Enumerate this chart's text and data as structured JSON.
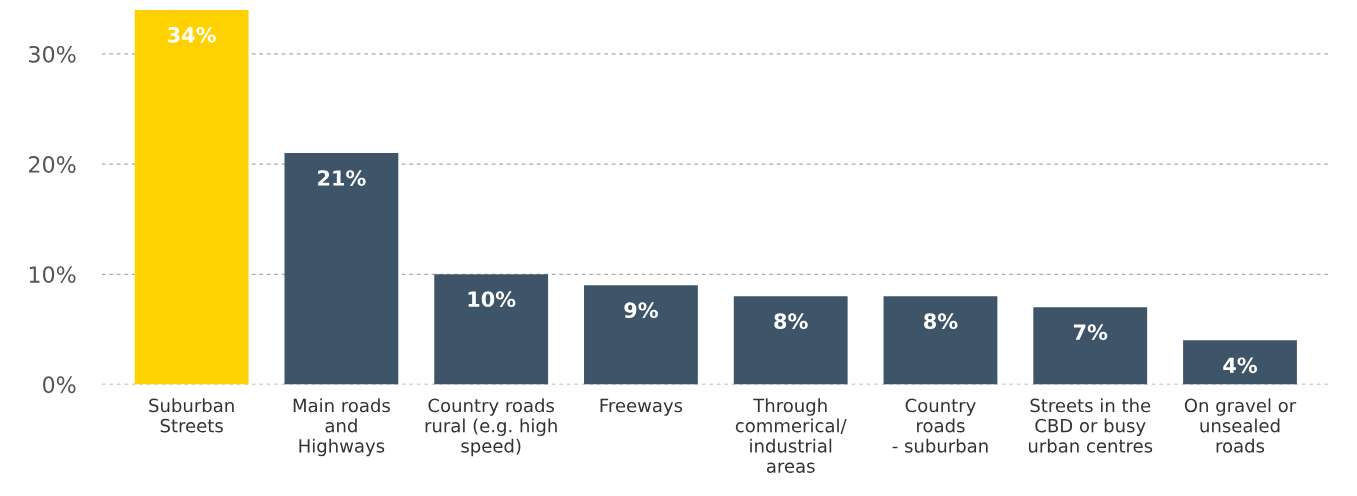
{
  "chart_data": {
    "type": "bar",
    "categories": [
      "Suburban\nStreets",
      "Main roads\nand\nHighways",
      "Country roads\nrural (e.g. high\nspeed)",
      "Freeways",
      "Through\ncommerical/\nindustrial\nareas",
      "Country\nroads\n- suburban",
      "Streets in the\nCBD or busy\nurban centres",
      "On gravel or\nunsealed\nroads"
    ],
    "values": [
      34,
      21,
      10,
      9,
      8,
      8,
      7,
      4
    ],
    "colors": [
      "#ffd100",
      "#3e5468",
      "#3e5468",
      "#3e5468",
      "#3e5468",
      "#3e5468",
      "#3e5468",
      "#3e5468"
    ],
    "value_labels": [
      "34%",
      "21%",
      "10%",
      "9%",
      "8%",
      "8%",
      "7%",
      "4%"
    ],
    "ylim": [
      0,
      34
    ],
    "yticks": [
      {
        "value": 0,
        "label": "0%"
      },
      {
        "value": 10,
        "label": "10%"
      },
      {
        "value": 20,
        "label": "20%"
      },
      {
        "value": 30,
        "label": "30%"
      }
    ],
    "grid": "y"
  }
}
